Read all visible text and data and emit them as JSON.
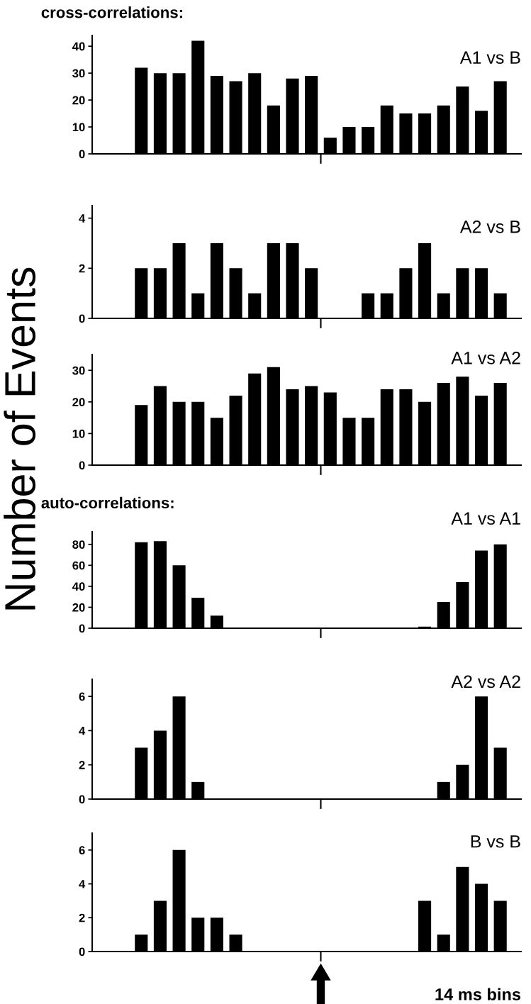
{
  "chart_data": [
    {
      "type": "bar",
      "title": "A1 vs B",
      "annotations": [
        "cross-correlations:"
      ],
      "categories": [
        null,
        null,
        null,
        null,
        null,
        null,
        null,
        null,
        null,
        null,
        null,
        null,
        null,
        null,
        null,
        null,
        null,
        null,
        null,
        null
      ],
      "values": [
        32,
        30,
        30,
        42,
        29,
        27,
        30,
        18,
        28,
        29,
        6,
        10,
        10,
        18,
        15,
        15,
        18,
        25,
        16,
        27
      ],
      "color": "#000000",
      "ylim": [
        0,
        44
      ],
      "yticks": [
        0,
        10,
        20,
        30,
        40
      ],
      "grid": false
    },
    {
      "type": "bar",
      "title": "A2 vs B",
      "categories": [
        null,
        null,
        null,
        null,
        null,
        null,
        null,
        null,
        null,
        null,
        null,
        null,
        null,
        null,
        null,
        null,
        null,
        null,
        null,
        null
      ],
      "values": [
        2,
        2,
        3,
        1,
        3,
        2,
        1,
        3,
        3,
        2,
        0,
        0,
        1,
        1,
        2,
        3,
        1,
        2,
        2,
        1
      ],
      "color": "#000000",
      "ylim": [
        0,
        4.5
      ],
      "yticks": [
        0,
        2,
        4
      ],
      "grid": false
    },
    {
      "type": "bar",
      "title": "A1 vs A2",
      "ylabel": "Number of Events",
      "categories": [
        null,
        null,
        null,
        null,
        null,
        null,
        null,
        null,
        null,
        null,
        null,
        null,
        null,
        null,
        null,
        null,
        null,
        null,
        null,
        null
      ],
      "values": [
        19,
        25,
        20,
        20,
        15,
        22,
        29,
        31,
        24,
        25,
        23,
        15,
        15,
        24,
        24,
        20,
        26,
        28,
        22,
        26
      ],
      "color": "#000000",
      "ylim": [
        0,
        35
      ],
      "yticks": [
        0,
        10,
        20,
        30
      ],
      "grid": false
    },
    {
      "type": "bar",
      "title": "A1 vs A1",
      "annotations": [
        "auto-correlations:"
      ],
      "categories": [
        null,
        null,
        null,
        null,
        null,
        null,
        null,
        null,
        null,
        null,
        null,
        null,
        null,
        null,
        null,
        null,
        null,
        null,
        null,
        null
      ],
      "values": [
        82,
        83,
        60,
        29,
        12,
        0.5,
        0,
        0,
        0,
        0,
        0,
        0,
        0,
        0,
        0,
        1.5,
        25,
        44,
        74,
        80
      ],
      "color": "#000000",
      "ylim": [
        0,
        92
      ],
      "yticks": [
        0,
        20,
        40,
        60,
        80
      ],
      "grid": false
    },
    {
      "type": "bar",
      "title": "A2 vs A2",
      "categories": [
        null,
        null,
        null,
        null,
        null,
        null,
        null,
        null,
        null,
        null,
        null,
        null,
        null,
        null,
        null,
        null,
        null,
        null,
        null,
        null
      ],
      "values": [
        3,
        4,
        6,
        1,
        0,
        0,
        0,
        0,
        0,
        0,
        0,
        0,
        0,
        0,
        0,
        0,
        1,
        2,
        6,
        3
      ],
      "color": "#000000",
      "ylim": [
        0,
        7
      ],
      "yticks": [
        0,
        2,
        4,
        6
      ],
      "grid": false
    },
    {
      "type": "bar",
      "title": "B vs B",
      "annotations": [
        "14 ms bins"
      ],
      "categories": [
        null,
        null,
        null,
        null,
        null,
        null,
        null,
        null,
        null,
        null,
        null,
        null,
        null,
        null,
        null,
        null,
        null,
        null,
        null,
        null
      ],
      "values": [
        1,
        3,
        6,
        2,
        2,
        1,
        0,
        0,
        0,
        0,
        0,
        0,
        0,
        0,
        0,
        3,
        1,
        5,
        4,
        3
      ],
      "color": "#000000",
      "ylim": [
        0,
        7
      ],
      "yticks": [
        0,
        2,
        4,
        6
      ],
      "grid": false
    }
  ]
}
